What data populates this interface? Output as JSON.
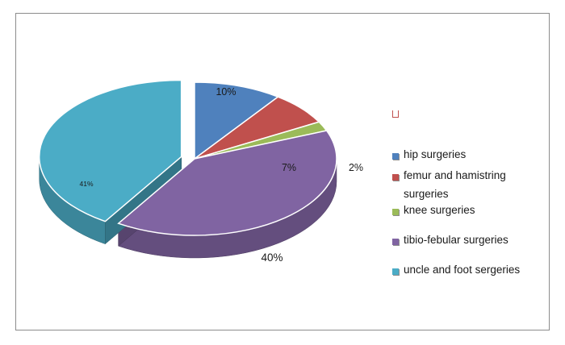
{
  "chart_data": {
    "type": "pie",
    "three_d": true,
    "categories": [
      "hip surgeries",
      "femur and hamistring surgeries",
      "knee surgeries",
      "tibio-febular surgeries",
      "uncle and foot sergeries"
    ],
    "values": [
      10,
      7,
      2,
      40,
      41
    ],
    "data_labels": [
      "10%",
      "7%",
      "2%",
      "40%",
      "41%"
    ],
    "colors": [
      "#4f81bd",
      "#c0504d",
      "#9bbb59",
      "#8064a2",
      "#4bacc6"
    ],
    "legend_position": "right"
  }
}
